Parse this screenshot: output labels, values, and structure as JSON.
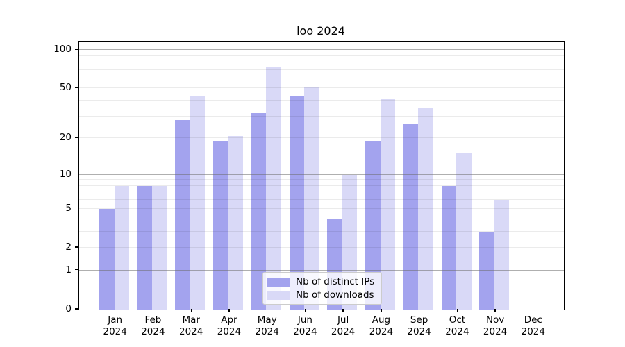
{
  "chart_data": {
    "type": "bar",
    "title": "loo 2024",
    "categories": [
      "Jan",
      "Feb",
      "Mar",
      "Apr",
      "May",
      "Jun",
      "Jul",
      "Aug",
      "Sep",
      "Oct",
      "Nov",
      "Dec"
    ],
    "category_year": "2024",
    "series": [
      {
        "name": "Nb of distinct IPs",
        "color": "#a3a3ee",
        "values": [
          5,
          8,
          28,
          19,
          32,
          43,
          4,
          19,
          26,
          8,
          3,
          0
        ]
      },
      {
        "name": "Nb of downloads",
        "color": "#d9d9f7",
        "values": [
          8,
          8,
          43,
          21,
          74,
          51,
          10,
          41,
          35,
          15,
          6,
          0
        ]
      }
    ],
    "yscale": "log1p",
    "ylim_top": 116,
    "yticks": [
      0,
      1,
      2,
      5,
      10,
      20,
      50,
      100
    ],
    "ytick_labels": [
      "0",
      "1",
      "2",
      "5",
      "10",
      "20",
      "50",
      "100"
    ],
    "major_grid_values": [
      1,
      10,
      100
    ],
    "minor_grid_values": [
      2,
      3,
      4,
      5,
      6,
      7,
      8,
      9,
      20,
      30,
      40,
      50,
      60,
      70,
      80,
      90
    ],
    "grid": true,
    "legend_position": "lower center",
    "xlabel": "",
    "ylabel": ""
  }
}
